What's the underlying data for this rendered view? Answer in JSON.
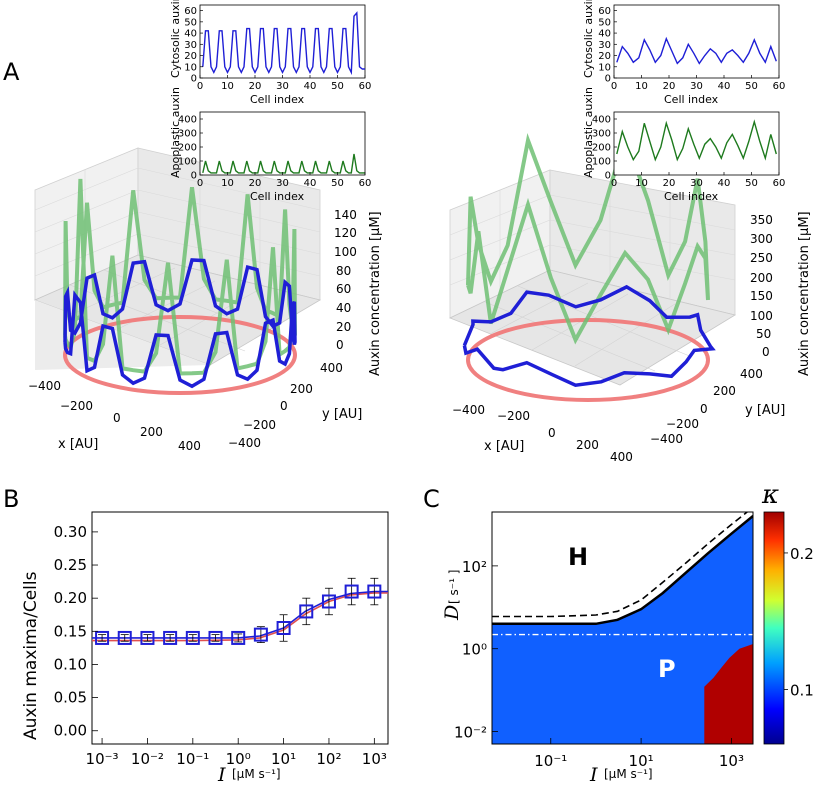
{
  "panel_labels": {
    "A": "A",
    "B": "B",
    "C": "C"
  },
  "inset_text": {
    "cyto_ylabel": "Cytosolic auxin",
    "apo_ylabel": "Apoplastic auxin",
    "xlabel": "Cell index"
  },
  "plot3d_text": {
    "zlabel": "Auxin concentration [μM]",
    "xlabel": "x [AU]",
    "ylabel": "y [AU]"
  },
  "panelB_text": {
    "ylabel": "Auxin maxima/Cells",
    "xlabel_sym": "I",
    "xlabel_unit": "[μM s⁻¹]"
  },
  "panelC_text": {
    "ylabel_sym": "D",
    "ylabel_unit": "[ s⁻¹ ]",
    "xlabel_sym": "I",
    "xlabel_unit": "[μM s⁻¹]",
    "cbar_label": "κ",
    "region_H": "H",
    "region_P": "P"
  },
  "colors": {
    "blue": "#1f1fd6",
    "green": "#1e7a1e",
    "light_green": "#6fbf73",
    "red_ring": "#f08080",
    "navy": "#1a237e"
  },
  "chart_data": [
    {
      "type": "line",
      "panel": "A",
      "position": "left-top",
      "ylabel": "Cytosolic auxin",
      "xlabel": "Cell index",
      "xlim": [
        0,
        60
      ],
      "ylim": [
        0,
        65
      ],
      "x_ticks": [
        0,
        10,
        20,
        30,
        40,
        50,
        60
      ],
      "y_ticks": [
        0,
        10,
        20,
        30,
        40,
        50,
        60
      ],
      "series": [
        {
          "color": "#1f1fd6",
          "x": [
            1,
            2,
            3,
            4,
            5,
            6,
            7,
            8,
            9,
            10,
            11,
            12,
            13,
            14,
            15,
            16,
            17,
            18,
            19,
            20,
            21,
            22,
            23,
            24,
            25,
            26,
            27,
            28,
            29,
            30,
            31,
            32,
            33,
            34,
            35,
            36,
            37,
            38,
            39,
            40,
            41,
            42,
            43,
            44,
            45,
            46,
            47,
            48,
            49,
            50,
            51,
            52,
            53,
            54,
            55,
            56,
            57,
            58,
            59,
            60
          ],
          "y": [
            10,
            42,
            42,
            10,
            5,
            10,
            42,
            42,
            10,
            5,
            10,
            42,
            42,
            10,
            5,
            10,
            44,
            44,
            10,
            5,
            10,
            44,
            44,
            10,
            5,
            10,
            44,
            44,
            10,
            5,
            10,
            44,
            44,
            10,
            5,
            10,
            44,
            44,
            10,
            5,
            10,
            44,
            44,
            10,
            5,
            10,
            44,
            44,
            10,
            5,
            10,
            44,
            44,
            10,
            5,
            55,
            58,
            10,
            8,
            8
          ]
        }
      ]
    },
    {
      "type": "line",
      "panel": "A",
      "position": "left-bottom",
      "ylabel": "Apoplastic auxin",
      "xlabel": "Cell index",
      "xlim": [
        0,
        60
      ],
      "ylim": [
        0,
        450
      ],
      "x_ticks": [
        0,
        10,
        20,
        30,
        40,
        50,
        60
      ],
      "y_ticks": [
        0,
        100,
        200,
        300,
        400
      ],
      "series": [
        {
          "color": "#1e7a1e",
          "x": [
            1,
            2,
            3,
            4,
            5,
            6,
            7,
            8,
            9,
            10,
            11,
            12,
            13,
            14,
            15,
            16,
            17,
            18,
            19,
            20,
            21,
            22,
            23,
            24,
            25,
            26,
            27,
            28,
            29,
            30,
            31,
            32,
            33,
            34,
            35,
            36,
            37,
            38,
            39,
            40,
            41,
            42,
            43,
            44,
            45,
            46,
            47,
            48,
            49,
            50,
            51,
            52,
            53,
            54,
            55,
            56,
            57,
            58,
            59,
            60
          ],
          "y": [
            15,
            100,
            30,
            15,
            15,
            15,
            100,
            30,
            15,
            15,
            15,
            100,
            30,
            15,
            15,
            15,
            100,
            30,
            15,
            15,
            15,
            100,
            30,
            15,
            15,
            15,
            100,
            30,
            15,
            15,
            15,
            100,
            30,
            15,
            15,
            15,
            100,
            30,
            15,
            15,
            15,
            100,
            30,
            15,
            15,
            15,
            100,
            30,
            15,
            15,
            15,
            100,
            30,
            15,
            15,
            150,
            30,
            15,
            15,
            15
          ]
        }
      ]
    },
    {
      "type": "line",
      "panel": "A",
      "position": "right-top",
      "ylabel": "Cytosolic auxin",
      "xlabel": "Cell index",
      "xlim": [
        0,
        60
      ],
      "ylim": [
        0,
        65
      ],
      "x_ticks": [
        0,
        10,
        20,
        30,
        40,
        50,
        60
      ],
      "y_ticks": [
        0,
        10,
        20,
        30,
        40,
        50,
        60
      ],
      "series": [
        {
          "color": "#1f1fd6",
          "x": [
            1,
            3,
            5,
            7,
            9,
            11,
            13,
            15,
            17,
            19,
            21,
            23,
            25,
            27,
            29,
            31,
            33,
            35,
            37,
            39,
            41,
            43,
            45,
            47,
            49,
            51,
            53,
            55,
            57,
            59
          ],
          "y": [
            14,
            28,
            22,
            14,
            18,
            34,
            25,
            14,
            20,
            35,
            24,
            13,
            18,
            30,
            22,
            13,
            20,
            26,
            22,
            14,
            22,
            25,
            20,
            14,
            22,
            34,
            22,
            14,
            28,
            15
          ]
        }
      ]
    },
    {
      "type": "line",
      "panel": "A",
      "position": "right-bottom",
      "ylabel": "Apoplastic auxin",
      "xlabel": "Cell index",
      "xlim": [
        0,
        60
      ],
      "ylim": [
        0,
        450
      ],
      "x_ticks": [
        0,
        10,
        20,
        30,
        40,
        50,
        60
      ],
      "y_ticks": [
        0,
        100,
        200,
        300,
        400
      ],
      "series": [
        {
          "color": "#1e7a1e",
          "x": [
            1,
            3,
            5,
            7,
            9,
            11,
            13,
            15,
            17,
            19,
            21,
            23,
            25,
            27,
            29,
            31,
            33,
            35,
            37,
            39,
            41,
            43,
            45,
            47,
            49,
            51,
            53,
            55,
            57,
            59
          ],
          "y": [
            150,
            310,
            200,
            110,
            170,
            370,
            240,
            110,
            200,
            370,
            250,
            110,
            190,
            330,
            220,
            120,
            220,
            260,
            200,
            120,
            230,
            290,
            210,
            120,
            240,
            380,
            240,
            120,
            290,
            150
          ]
        }
      ]
    },
    {
      "type": "3d-line",
      "panel": "A",
      "position": "left",
      "zlabel": "Auxin concentration [μM]",
      "xlabel": "x [AU]",
      "ylabel": "y [AU]",
      "x_ticks": [
        -400,
        -200,
        0,
        200,
        400
      ],
      "y_ticks": [
        -400,
        -200,
        0,
        200,
        400
      ],
      "z_ticks": [
        0,
        20,
        40,
        60,
        80,
        100,
        120,
        140
      ],
      "series": [
        {
          "name": "",
          "color": "#1f1fd6",
          "values": [
            10,
            42,
            42,
            10,
            5,
            10,
            42,
            42,
            10,
            5,
            10,
            44,
            44,
            10,
            5,
            10,
            44,
            44,
            10,
            5,
            10,
            44,
            44,
            10,
            5,
            10,
            44,
            44,
            10,
            5,
            10,
            44,
            44,
            10,
            5,
            10,
            44,
            44,
            10,
            5,
            10,
            44,
            44,
            10,
            5,
            10,
            44,
            44,
            10,
            5,
            10,
            44,
            44,
            10,
            5,
            55,
            58,
            10,
            8,
            8
          ]
        },
        {
          "name": "",
          "color": "#6fbf73",
          "values": [
            15,
            100,
            30,
            15,
            15,
            15,
            100,
            30,
            15,
            15,
            15,
            100,
            30,
            15,
            15,
            15,
            100,
            30,
            15,
            15,
            15,
            100,
            30,
            15,
            15,
            15,
            100,
            30,
            15,
            15,
            15,
            100,
            30,
            15,
            15,
            15,
            100,
            30,
            15,
            15,
            15,
            100,
            30,
            15,
            15,
            15,
            100,
            30,
            15,
            15,
            15,
            100,
            30,
            15,
            15,
            150,
            30,
            15,
            15,
            15
          ]
        },
        {
          "name": "",
          "color": "#f08080",
          "values": [
            0
          ]
        }
      ]
    },
    {
      "type": "3d-line",
      "panel": "A",
      "position": "right",
      "zlabel": "Auxin concentration [μM]",
      "xlabel": "x [AU]",
      "ylabel": "y [AU]",
      "x_ticks": [
        -400,
        -200,
        0,
        200,
        400
      ],
      "y_ticks": [
        -400,
        -200,
        0,
        200,
        400
      ],
      "z_ticks": [
        0,
        50,
        100,
        150,
        200,
        250,
        300,
        350
      ],
      "series": [
        {
          "name": "",
          "color": "#1f1fd6",
          "values": [
            14,
            28,
            22,
            14,
            18,
            34,
            25,
            14,
            20,
            35,
            24,
            13,
            18,
            30,
            22,
            13,
            20,
            26,
            22,
            14,
            22,
            25,
            20,
            14,
            22,
            34,
            22,
            14,
            28,
            15
          ]
        },
        {
          "name": "",
          "color": "#6fbf73",
          "values": [
            150,
            310,
            200,
            110,
            170,
            370,
            240,
            110,
            200,
            370,
            250,
            110,
            190,
            330,
            220,
            120,
            220,
            260,
            200,
            120,
            230,
            290,
            210,
            120,
            240,
            380,
            240,
            120,
            290,
            150
          ]
        },
        {
          "name": "",
          "color": "#f08080",
          "values": [
            0
          ]
        }
      ]
    },
    {
      "type": "line",
      "panel": "B",
      "ylabel": "Auxin maxima/Cells",
      "xlabel": "I [μM s⁻¹]",
      "xscale": "log",
      "xlim": [
        0.0006,
        2000
      ],
      "ylim": [
        -0.02,
        0.33
      ],
      "x_ticks": [
        0.001,
        0.01,
        0.1,
        1,
        10,
        100,
        1000
      ],
      "x_tick_labels": [
        "10⁻³",
        "10⁻²",
        "10⁻¹",
        "10⁰",
        "10¹",
        "10²",
        "10³"
      ],
      "y_ticks": [
        0.0,
        0.05,
        0.1,
        0.15,
        0.2,
        0.25,
        0.3
      ],
      "series": [
        {
          "name": "",
          "style": "squares-with-errorbars",
          "color": "#1f1fd6",
          "x": [
            0.001,
            0.00316,
            0.01,
            0.0316,
            0.1,
            0.316,
            1,
            3.16,
            10,
            31.6,
            100,
            316,
            1000
          ],
          "y": [
            0.14,
            0.14,
            0.14,
            0.14,
            0.14,
            0.14,
            0.14,
            0.145,
            0.155,
            0.18,
            0.195,
            0.21,
            0.21
          ],
          "err": [
            0.005,
            0.005,
            0.005,
            0.005,
            0.005,
            0.005,
            0.006,
            0.012,
            0.02,
            0.02,
            0.02,
            0.02,
            0.02
          ]
        },
        {
          "name": "",
          "style": "line",
          "color": "#1f1fd6",
          "x": [
            0.0006,
            0.001,
            0.01,
            0.1,
            1,
            3,
            10,
            30,
            100,
            300,
            1000,
            2000
          ],
          "y": [
            0.14,
            0.14,
            0.14,
            0.14,
            0.14,
            0.143,
            0.155,
            0.18,
            0.198,
            0.207,
            0.21,
            0.21
          ]
        },
        {
          "name": "",
          "style": "line",
          "color": "#e05050",
          "x": [
            0.0006,
            0.001,
            0.01,
            0.1,
            1,
            3,
            10,
            30,
            100,
            300,
            1000,
            2000
          ],
          "y": [
            0.136,
            0.136,
            0.136,
            0.136,
            0.137,
            0.14,
            0.152,
            0.176,
            0.195,
            0.205,
            0.208,
            0.208
          ]
        }
      ]
    },
    {
      "type": "heatmap",
      "panel": "C",
      "ylabel": "D [ s⁻¹ ]",
      "xlabel": "I [μM s⁻¹]",
      "xscale": "log",
      "yscale": "log",
      "xlim": [
        0.005,
        3000
      ],
      "ylim": [
        0.005,
        2000
      ],
      "x_ticks": [
        0.1,
        10,
        1000
      ],
      "x_tick_labels": [
        "10⁻¹",
        "10¹",
        "10³"
      ],
      "y_ticks": [
        0.01,
        1,
        100
      ],
      "y_tick_labels": [
        "10⁻²",
        "10⁰",
        "10²"
      ],
      "colorbar": {
        "label": "κ",
        "ticks": [
          0.1,
          0.2
        ],
        "range": [
          0.06,
          0.23
        ]
      },
      "regions": [
        "H",
        "P"
      ],
      "boundary_solid": {
        "x": [
          0.005,
          0.1,
          1,
          3,
          10,
          30,
          100,
          300,
          1000,
          3000
        ],
        "y": [
          4,
          4,
          4,
          5,
          9,
          22,
          70,
          200,
          600,
          1600
        ]
      },
      "boundary_dashed": {
        "x": [
          0.005,
          0.1,
          1,
          3,
          10,
          30,
          100,
          300,
          1000,
          3000
        ],
        "y": [
          6,
          6,
          6.5,
          8,
          15,
          40,
          120,
          340,
          1000,
          2600
        ]
      },
      "hline_dashdot": {
        "y": 2.2
      }
    }
  ]
}
